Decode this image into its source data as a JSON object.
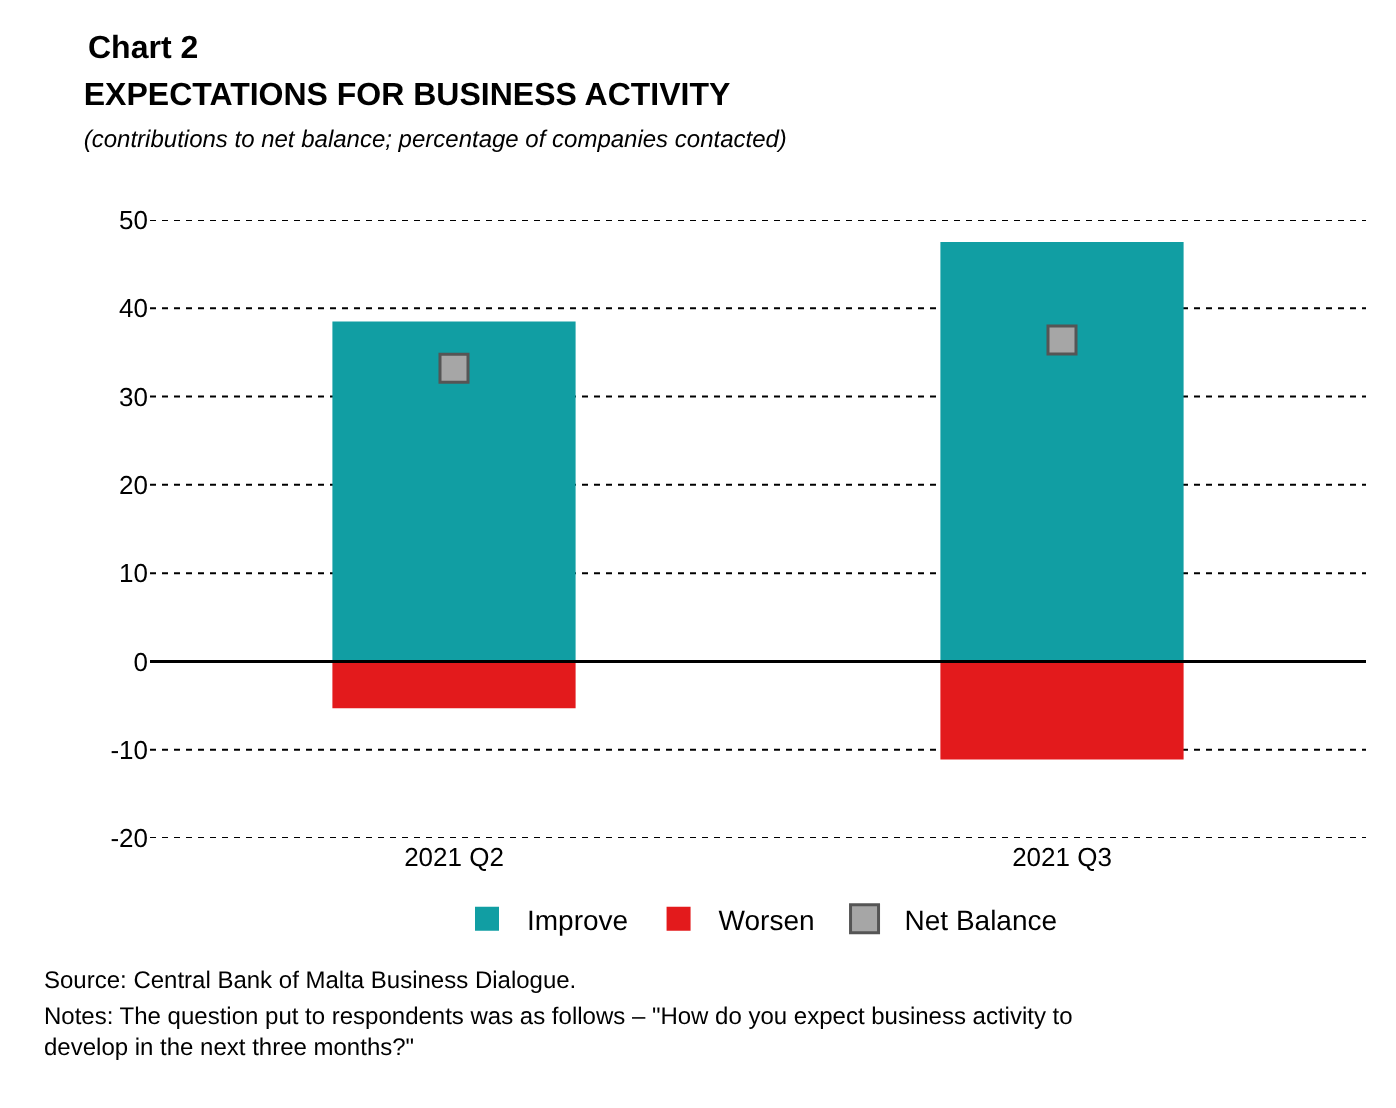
{
  "chart_data": {
    "type": "bar",
    "title": "EXPECTATIONS FOR BUSINESS ACTIVITY",
    "subtitle": "(contributions to net balance; percentage of companies contacted)",
    "categories": [
      "2021 Q2",
      "2021 Q3"
    ],
    "stacked": true,
    "series": [
      {
        "name": "Improve",
        "color": "#119ea3",
        "values": [
          38.5,
          47.5
        ]
      },
      {
        "name": "Worsen",
        "color": "#e31a1c",
        "values": [
          -5.3,
          -11.1
        ]
      },
      {
        "name": "Net Balance",
        "type": "scatter",
        "marker": "square",
        "color": "#a6a6a6",
        "values": [
          33.2,
          36.4
        ]
      }
    ],
    "ylim": [
      -20,
      50
    ],
    "yticks": [
      -20,
      -10,
      0,
      10,
      20,
      30,
      40,
      50
    ],
    "ref_lines": [
      {
        "axis": "y",
        "value": 0,
        "color": "#000000"
      }
    ],
    "grid": "y",
    "legend": "bottom",
    "annotations": [
      "Chart 2",
      "Source: Central Bank of Malta Business Dialogue.",
      "Notes: The question put to respondents was as follows – \"How do you expect business activity to develop in the next three months?\""
    ]
  }
}
